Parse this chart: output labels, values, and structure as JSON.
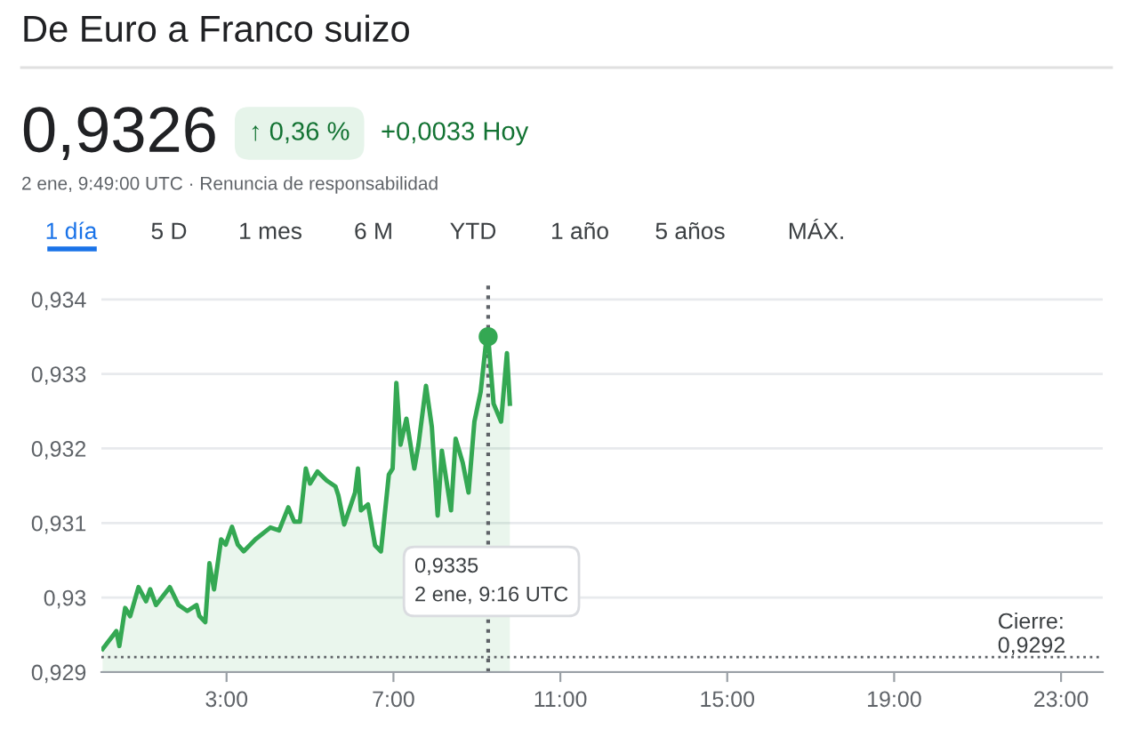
{
  "chart_data": {
    "type": "area",
    "title": "De Euro a Franco suizo",
    "x": [
      0.03,
      0.14,
      0.36,
      0.43,
      0.57,
      0.69,
      0.89,
      1.07,
      1.17,
      1.31,
      1.64,
      1.85,
      2.06,
      2.28,
      2.35,
      2.49,
      2.59,
      2.7,
      2.87,
      2.98,
      3.13,
      3.27,
      3.41,
      3.69,
      4.05,
      4.26,
      4.48,
      4.62,
      4.76,
      4.9,
      5.0,
      5.18,
      5.4,
      5.61,
      5.68,
      5.82,
      6.08,
      6.15,
      6.22,
      6.39,
      6.56,
      6.7,
      6.89,
      6.98,
      7.07,
      7.17,
      7.31,
      7.5,
      7.6,
      7.78,
      7.92,
      8.06,
      8.16,
      8.38,
      8.49,
      8.66,
      8.8,
      8.94,
      9.09,
      9.23,
      9.27,
      9.4,
      9.58,
      9.72,
      9.79
    ],
    "series": [
      {
        "type": "area",
        "color": "#34a853",
        "values": [
          0.92931,
          0.92939,
          0.92955,
          0.92935,
          0.92986,
          0.92975,
          0.93014,
          0.92995,
          0.93011,
          0.9299,
          0.93014,
          0.9299,
          0.92982,
          0.9299,
          0.92975,
          0.92967,
          0.93046,
          0.93011,
          0.93078,
          0.93071,
          0.93095,
          0.93071,
          0.93062,
          0.93078,
          0.93094,
          0.9309,
          0.93121,
          0.93102,
          0.93102,
          0.93173,
          0.93153,
          0.93169,
          0.93157,
          0.93149,
          0.93137,
          0.93098,
          0.93141,
          0.93173,
          0.93117,
          0.93125,
          0.9307,
          0.93062,
          0.93165,
          0.93173,
          0.93288,
          0.93205,
          0.9324,
          0.93173,
          0.93205,
          0.93284,
          0.93229,
          0.9311,
          0.93197,
          0.93117,
          0.93213,
          0.93181,
          0.93141,
          0.93236,
          0.93276,
          0.93348,
          0.9335,
          0.9326,
          0.93236,
          0.93328,
          0.9326
        ]
      },
      {
        "type": "scatter",
        "color": "#34a853",
        "x": [
          9.27
        ],
        "values": [
          0.9335
        ]
      }
    ],
    "xlim": [
      0,
      24
    ],
    "xticks": [
      {
        "value": 3,
        "label": "3:00"
      },
      {
        "value": 7,
        "label": "7:00"
      },
      {
        "value": 11,
        "label": "11:00"
      },
      {
        "value": 15,
        "label": "15:00"
      },
      {
        "value": 19,
        "label": "19:00"
      },
      {
        "value": 23,
        "label": "23:00"
      }
    ],
    "ylim": [
      0.929,
      0.9342
    ],
    "yticks": [
      {
        "value": 0.929,
        "label": "0,929"
      },
      {
        "value": 0.93,
        "label": "0,93"
      },
      {
        "value": 0.931,
        "label": "0,931"
      },
      {
        "value": 0.932,
        "label": "0,932"
      },
      {
        "value": 0.933,
        "label": "0,933"
      },
      {
        "value": 0.934,
        "label": "0,934"
      }
    ],
    "grid": "y",
    "ref_lines": [
      {
        "axis": "y",
        "value": 0.9292,
        "label": "Cierre:\n0,9292",
        "color": "#5f6368",
        "line_style": "dotted"
      },
      {
        "axis": "x",
        "value": 9.27,
        "color": "#5f6368",
        "line_style": "dotted"
      }
    ],
    "annotations": [
      "0,9326",
      "↑ 0,36 %",
      "+0,0033 Hoy",
      "2 ene, 9:49:00 UTC · Renuncia de responsabilidad",
      "1 día",
      "5 D",
      "1 mes",
      "6 M",
      "YTD",
      "1 año",
      "5 años",
      "MÁX.",
      "0,9335\n2 ene, 9:16 UTC"
    ]
  }
}
